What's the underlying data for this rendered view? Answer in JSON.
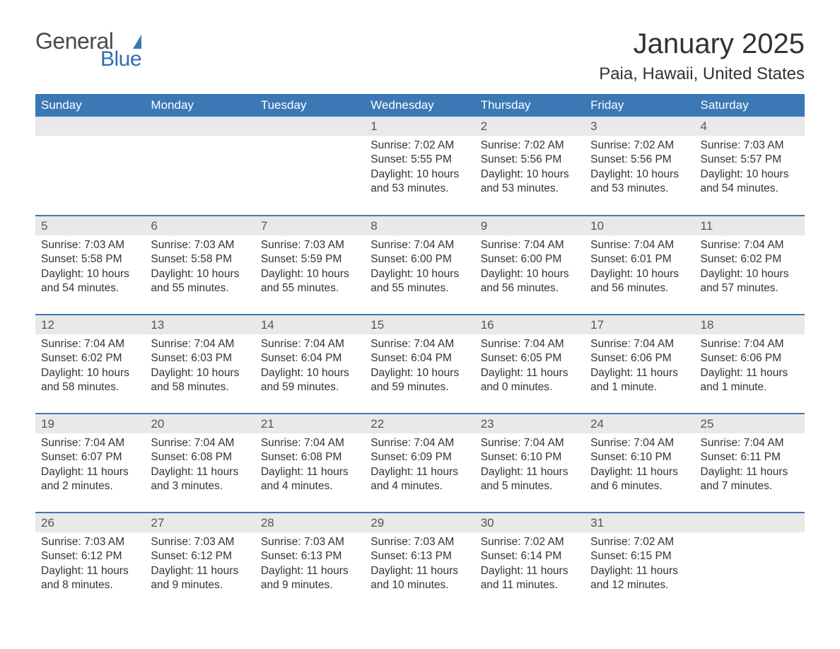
{
  "logo": {
    "general": "General",
    "blue": "Blue",
    "flag_color": "#3b78b5"
  },
  "title": "January 2025",
  "location": "Paia, Hawaii, United States",
  "colors": {
    "header_bg": "#3b78b5",
    "header_fg": "#ffffff",
    "daynum_bg": "#e9e9e9",
    "rule": "#3b78b5",
    "text": "#333333"
  },
  "typography": {
    "title_size": 40,
    "location_size": 24,
    "th_size": 17,
    "body_size": 15.5
  },
  "weekdays": [
    "Sunday",
    "Monday",
    "Tuesday",
    "Wednesday",
    "Thursday",
    "Friday",
    "Saturday"
  ],
  "weeks": [
    [
      null,
      null,
      null,
      {
        "n": "1",
        "sr": "7:02 AM",
        "ss": "5:55 PM",
        "dl": "10 hours and 53 minutes."
      },
      {
        "n": "2",
        "sr": "7:02 AM",
        "ss": "5:56 PM",
        "dl": "10 hours and 53 minutes."
      },
      {
        "n": "3",
        "sr": "7:02 AM",
        "ss": "5:56 PM",
        "dl": "10 hours and 53 minutes."
      },
      {
        "n": "4",
        "sr": "7:03 AM",
        "ss": "5:57 PM",
        "dl": "10 hours and 54 minutes."
      }
    ],
    [
      {
        "n": "5",
        "sr": "7:03 AM",
        "ss": "5:58 PM",
        "dl": "10 hours and 54 minutes."
      },
      {
        "n": "6",
        "sr": "7:03 AM",
        "ss": "5:58 PM",
        "dl": "10 hours and 55 minutes."
      },
      {
        "n": "7",
        "sr": "7:03 AM",
        "ss": "5:59 PM",
        "dl": "10 hours and 55 minutes."
      },
      {
        "n": "8",
        "sr": "7:04 AM",
        "ss": "6:00 PM",
        "dl": "10 hours and 55 minutes."
      },
      {
        "n": "9",
        "sr": "7:04 AM",
        "ss": "6:00 PM",
        "dl": "10 hours and 56 minutes."
      },
      {
        "n": "10",
        "sr": "7:04 AM",
        "ss": "6:01 PM",
        "dl": "10 hours and 56 minutes."
      },
      {
        "n": "11",
        "sr": "7:04 AM",
        "ss": "6:02 PM",
        "dl": "10 hours and 57 minutes."
      }
    ],
    [
      {
        "n": "12",
        "sr": "7:04 AM",
        "ss": "6:02 PM",
        "dl": "10 hours and 58 minutes."
      },
      {
        "n": "13",
        "sr": "7:04 AM",
        "ss": "6:03 PM",
        "dl": "10 hours and 58 minutes."
      },
      {
        "n": "14",
        "sr": "7:04 AM",
        "ss": "6:04 PM",
        "dl": "10 hours and 59 minutes."
      },
      {
        "n": "15",
        "sr": "7:04 AM",
        "ss": "6:04 PM",
        "dl": "10 hours and 59 minutes."
      },
      {
        "n": "16",
        "sr": "7:04 AM",
        "ss": "6:05 PM",
        "dl": "11 hours and 0 minutes."
      },
      {
        "n": "17",
        "sr": "7:04 AM",
        "ss": "6:06 PM",
        "dl": "11 hours and 1 minute."
      },
      {
        "n": "18",
        "sr": "7:04 AM",
        "ss": "6:06 PM",
        "dl": "11 hours and 1 minute."
      }
    ],
    [
      {
        "n": "19",
        "sr": "7:04 AM",
        "ss": "6:07 PM",
        "dl": "11 hours and 2 minutes."
      },
      {
        "n": "20",
        "sr": "7:04 AM",
        "ss": "6:08 PM",
        "dl": "11 hours and 3 minutes."
      },
      {
        "n": "21",
        "sr": "7:04 AM",
        "ss": "6:08 PM",
        "dl": "11 hours and 4 minutes."
      },
      {
        "n": "22",
        "sr": "7:04 AM",
        "ss": "6:09 PM",
        "dl": "11 hours and 4 minutes."
      },
      {
        "n": "23",
        "sr": "7:04 AM",
        "ss": "6:10 PM",
        "dl": "11 hours and 5 minutes."
      },
      {
        "n": "24",
        "sr": "7:04 AM",
        "ss": "6:10 PM",
        "dl": "11 hours and 6 minutes."
      },
      {
        "n": "25",
        "sr": "7:04 AM",
        "ss": "6:11 PM",
        "dl": "11 hours and 7 minutes."
      }
    ],
    [
      {
        "n": "26",
        "sr": "7:03 AM",
        "ss": "6:12 PM",
        "dl": "11 hours and 8 minutes."
      },
      {
        "n": "27",
        "sr": "7:03 AM",
        "ss": "6:12 PM",
        "dl": "11 hours and 9 minutes."
      },
      {
        "n": "28",
        "sr": "7:03 AM",
        "ss": "6:13 PM",
        "dl": "11 hours and 9 minutes."
      },
      {
        "n": "29",
        "sr": "7:03 AM",
        "ss": "6:13 PM",
        "dl": "11 hours and 10 minutes."
      },
      {
        "n": "30",
        "sr": "7:02 AM",
        "ss": "6:14 PM",
        "dl": "11 hours and 11 minutes."
      },
      {
        "n": "31",
        "sr": "7:02 AM",
        "ss": "6:15 PM",
        "dl": "11 hours and 12 minutes."
      },
      null
    ]
  ],
  "labels": {
    "sunrise": "Sunrise: ",
    "sunset": "Sunset: ",
    "daylight": "Daylight: "
  }
}
